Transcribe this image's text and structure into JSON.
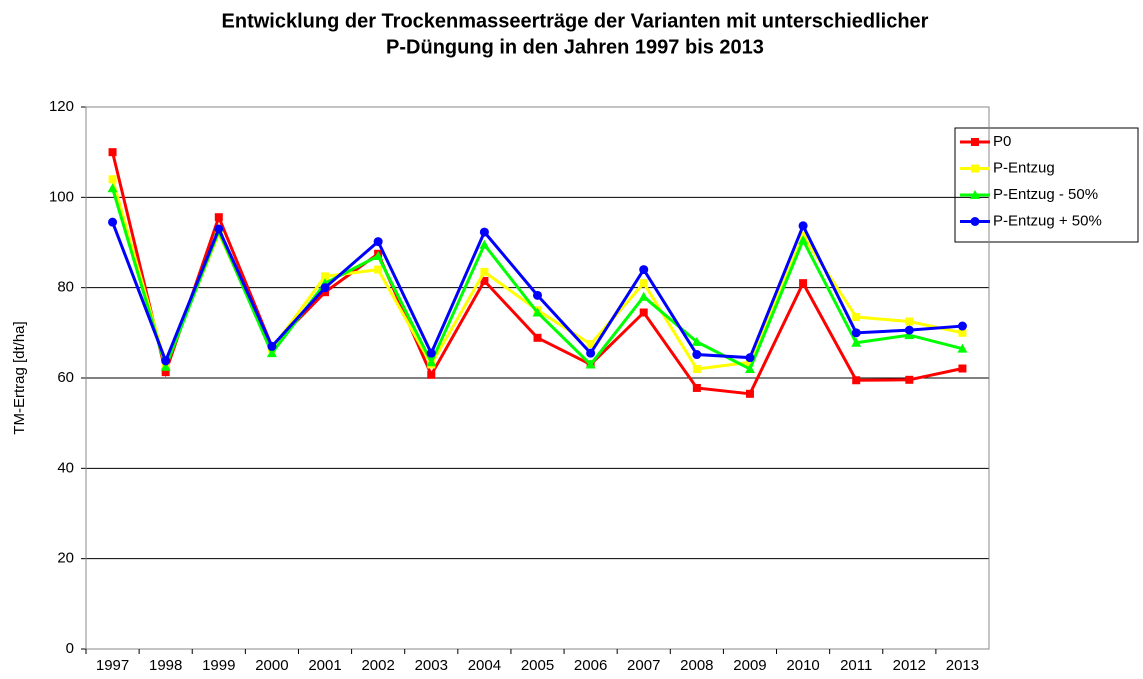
{
  "chart_data": {
    "type": "line",
    "title": [
      "Entwicklung der Trockenmasseerträge der Varianten mit unterschiedlicher",
      "P-Düngung in den Jahren 1997 bis 2013"
    ],
    "y_label": "TM-Ertrag [dt/ha]",
    "categories": [
      "1997",
      "1998",
      "1999",
      "2000",
      "2001",
      "2002",
      "2003",
      "2004",
      "2005",
      "2006",
      "2007",
      "2008",
      "2009",
      "2010",
      "2011",
      "2012",
      "2013"
    ],
    "ylim": [
      0,
      120
    ],
    "yticks": [
      0,
      20,
      40,
      60,
      80,
      100,
      120
    ],
    "grid": true,
    "legend": "right",
    "series": [
      {
        "name": "P0",
        "color": "#ff0000",
        "marker": "square",
        "values": [
          110,
          61.3,
          95.6,
          67,
          79,
          87.5,
          60.7,
          81.5,
          68.9,
          63,
          74.5,
          57.8,
          56.5,
          81,
          59.5,
          59.6,
          62.1
        ]
      },
      {
        "name": "P-Entzug",
        "color": "#ffff00",
        "marker": "square",
        "values": [
          104,
          63,
          92,
          66.5,
          82.5,
          84,
          63,
          83.5,
          75,
          67.5,
          81,
          62,
          63.5,
          91.5,
          73.5,
          72.5,
          70
        ]
      },
      {
        "name": "P-Entzug - 50%",
        "color": "#00ff00",
        "marker": "triangle",
        "values": [
          102,
          62.5,
          92.5,
          65.5,
          81,
          87,
          63.5,
          89.5,
          74.5,
          63,
          78,
          68,
          62,
          90.5,
          67.8,
          69.5,
          66.5
        ]
      },
      {
        "name": "P-Entzug + 50%",
        "color": "#0000ff",
        "marker": "circle",
        "values": [
          94.5,
          63.8,
          93,
          67,
          80,
          90.2,
          65.5,
          92.3,
          78.3,
          65.5,
          84,
          65.2,
          64.5,
          93.7,
          70,
          70.6,
          71.5
        ]
      }
    ]
  }
}
